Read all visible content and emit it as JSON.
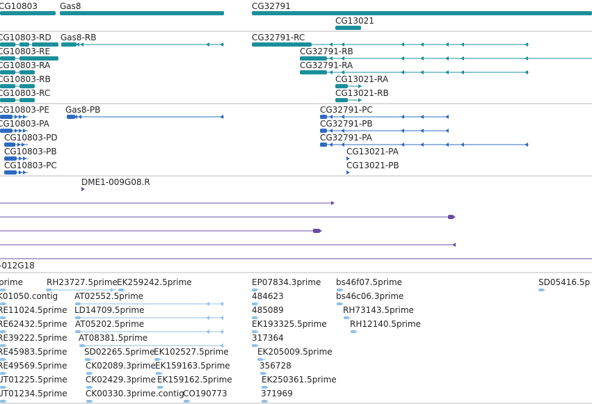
{
  "colors": {
    "gene": "#1b8f9b",
    "mrna_ncbi": "#1b8f9b",
    "mrna_flybase": "#2e6bc0",
    "clone": "#6a4ba8",
    "est": "#8fbfe6",
    "separator": "#b8b8b8"
  },
  "tracks": {
    "genes": {
      "features": [
        {
          "label": "CG10803"
        },
        {
          "label": "Gas8"
        },
        {
          "label": "CG32791"
        },
        {
          "label": "CG13021"
        }
      ]
    },
    "mrna_ncbi": {
      "features": [
        {
          "label": "CG10803-RD"
        },
        {
          "label": "Gas8-RB"
        },
        {
          "label": "CG32791-RC"
        },
        {
          "label": "CG10803-RE"
        },
        {
          "label": "CG32791-RB"
        },
        {
          "label": "CG10803-RA"
        },
        {
          "label": "CG32791-RA"
        },
        {
          "label": "CG10803-RB"
        },
        {
          "label": "CG13021-RA"
        },
        {
          "label": "CG10803-RC"
        },
        {
          "label": "CG13021-RB"
        }
      ]
    },
    "mrna_flybase": {
      "features": [
        {
          "label": "CG10803-PE"
        },
        {
          "label": "Gas8-PB"
        },
        {
          "label": "CG32791-PC"
        },
        {
          "label": "CG10803-PA"
        },
        {
          "label": "CG32791-PB"
        },
        {
          "label": "CG10803-PD"
        },
        {
          "label": "CG32791-PA"
        },
        {
          "label": "CG10803-PB"
        },
        {
          "label": "CG13021-PA"
        },
        {
          "label": "CG10803-PC"
        },
        {
          "label": "CG13021-PB"
        }
      ]
    },
    "clones": {
      "features": [
        {
          "label": "DME1-009G08.R"
        },
        {
          "label": "-012G18"
        }
      ]
    },
    "ests": {
      "features": [
        {
          "label": "RH23727.5prime"
        },
        {
          "label": "EK259242.5prime"
        },
        {
          "label": "EP07834.3prime"
        },
        {
          "label": "bs46f07.5prime"
        },
        {
          "label": "SD05416.5p"
        },
        {
          "label": "K01050.contig"
        },
        {
          "label": "AT02552.5prime"
        },
        {
          "label": "484623"
        },
        {
          "label": "bs46c06.3prime"
        },
        {
          "label": "RE11024.5prime"
        },
        {
          "label": "LD14709.5prime"
        },
        {
          "label": "485089"
        },
        {
          "label": "RH73143.5prime"
        },
        {
          "label": "RE62432.5prime"
        },
        {
          "label": "AT05202.5prime"
        },
        {
          "label": "EK193325.5prime"
        },
        {
          "label": "RH12140.5prime"
        },
        {
          "label": "RE39222.5prime"
        },
        {
          "label": "AT08381.5prime"
        },
        {
          "label": "317364"
        },
        {
          "label": "RE45983.5prime"
        },
        {
          "label": "SD02265.5prime"
        },
        {
          "label": "EK102527.5prime"
        },
        {
          "label": "EK205009.5prime"
        },
        {
          "label": "RE49569.5prime"
        },
        {
          "label": "CK02089.3prime"
        },
        {
          "label": "EK159163.5prime"
        },
        {
          "label": "356728"
        },
        {
          "label": "UT01225.5prime"
        },
        {
          "label": "CK02429.3prime"
        },
        {
          "label": "EK159162.5prime"
        },
        {
          "label": "EK250361.5prime"
        },
        {
          "label": "UT01234.5prime"
        },
        {
          "label": "CK00330.3prime.contig"
        },
        {
          "label": "CO190773"
        },
        {
          "label": "371969"
        },
        {
          "label": "prime"
        }
      ]
    }
  }
}
